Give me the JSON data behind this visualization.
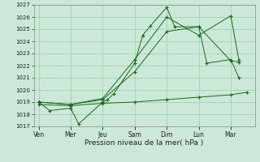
{
  "bg_color": "#cce8d8",
  "grid_color": "#99ccaa",
  "line_color": "#1a6b1a",
  "xlabel": "Pression niveau de la mer( hPa )",
  "ylim": [
    1017,
    1027
  ],
  "yticks": [
    1017,
    1018,
    1019,
    1020,
    1021,
    1022,
    1023,
    1024,
    1025,
    1026,
    1027
  ],
  "xtick_labels": [
    "Ven",
    "Mer",
    "Jeu",
    "Sam",
    "Dim",
    "Lun",
    "Mar"
  ],
  "xtick_positions": [
    0,
    2,
    4,
    6,
    8,
    10,
    12
  ],
  "xlim": [
    -0.3,
    13.5
  ],
  "series": [
    {
      "x": [
        0,
        0.7,
        2,
        2.5,
        4,
        4.3,
        4.7,
        6,
        6.5,
        7,
        8,
        8.5,
        10,
        10.5,
        12,
        12.5
      ],
      "y": [
        1019,
        1018.3,
        1018.5,
        1017.2,
        1019.0,
        1019.2,
        1019.7,
        1022.2,
        1024.5,
        1025.3,
        1026.8,
        1025.2,
        1025.2,
        1022.2,
        1022.5,
        1021.0
      ]
    },
    {
      "x": [
        0,
        2,
        4,
        6,
        8,
        10,
        12,
        13
      ],
      "y": [
        1018.8,
        1018.7,
        1018.9,
        1019.0,
        1019.2,
        1019.4,
        1019.6,
        1019.8
      ]
    },
    {
      "x": [
        0,
        2,
        4,
        6,
        8,
        10,
        12,
        12.5
      ],
      "y": [
        1019.0,
        1018.8,
        1019.2,
        1021.5,
        1024.8,
        1025.2,
        1022.4,
        1022.3
      ]
    },
    {
      "x": [
        0,
        2,
        4,
        6,
        8,
        10,
        12,
        12.5
      ],
      "y": [
        1019.0,
        1018.8,
        1019.3,
        1022.5,
        1026.0,
        1024.5,
        1026.1,
        1022.5
      ]
    }
  ]
}
